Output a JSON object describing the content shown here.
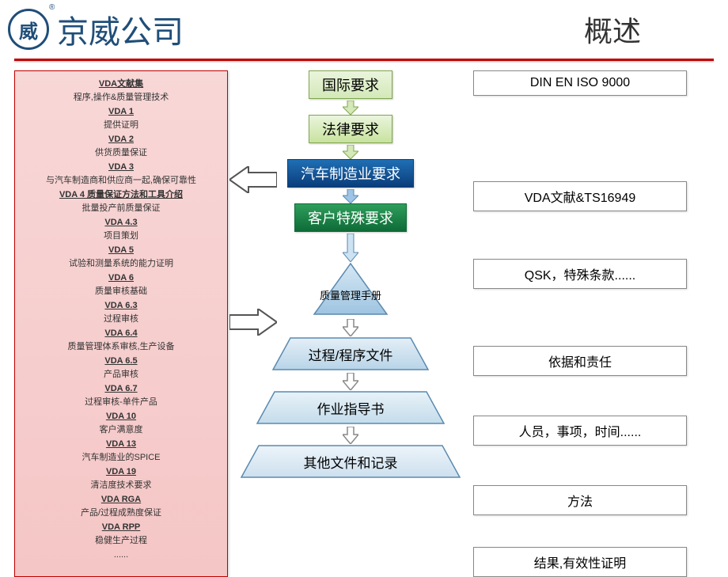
{
  "header": {
    "company": "京威公司",
    "title": "概述",
    "reg": "®",
    "logo_char": "威"
  },
  "colors": {
    "redline": "#c00000",
    "logo": "#1f4e79"
  },
  "left_items": [
    {
      "t": "VDA文献集",
      "d": "程序,操作&质量管理技术"
    },
    {
      "t": "VDA 1",
      "d": "提供证明"
    },
    {
      "t": "VDA 2",
      "d": "供货质量保证"
    },
    {
      "t": "VDA 3",
      "d": "与汽车制造商和供应商一起,确保可靠性"
    },
    {
      "t": "VDA 4 质量保证方法和工具介绍",
      "d": "批量投产前质量保证"
    },
    {
      "t": "VDA 4.3",
      "d": "项目策划"
    },
    {
      "t": "VDA 5",
      "d": "试验和测量系统的能力证明"
    },
    {
      "t": "VDA 6",
      "d": "质量审核基础"
    },
    {
      "t": "VDA 6.3",
      "d": "过程审核"
    },
    {
      "t": "VDA 6.4",
      "d": "质量管理体系审核,生产设备"
    },
    {
      "t": "VDA 6.5",
      "d": "产品审核"
    },
    {
      "t": "VDA 6.7",
      "d": "过程审核-单件产品"
    },
    {
      "t": "VDA 10",
      "d": "客户满意度"
    },
    {
      "t": "VDA 13",
      "d": "汽车制造业的SPICE"
    },
    {
      "t": "VDA 19",
      "d": "清洁度技术要求"
    },
    {
      "t": "VDA RGA",
      "d": "产品/过程成熟度保证"
    },
    {
      "t": "VDA RPP",
      "d": "稳健生产过程"
    },
    {
      "t": "",
      "d": "......"
    }
  ],
  "flow": {
    "box1": {
      "text": "国际要求",
      "bg": "linear-gradient(#eaf5dc,#d4e8b8)",
      "border": "#7fa650"
    },
    "box2": {
      "text": "法律要求",
      "bg": "linear-gradient(#eaf5dc,#c8e29e)",
      "border": "#7fa650"
    },
    "box3": {
      "text": "汽车制造业要求",
      "bg": "linear-gradient(#1f6fb5,#0b3d7a)",
      "border": "#0b3d7a",
      "color": "#fff"
    },
    "box4": {
      "text": "客户特殊要求",
      "bg": "linear-gradient(#2e9e5b,#0e6b37)",
      "border": "#0e6b37",
      "color": "#fff"
    },
    "pyr_top": "质量管理手册",
    "trap1": "过程/程序文件",
    "trap2": "作业指导书",
    "trap3": "其他文件和记录",
    "pyr_fill": "#b8d4e8",
    "pyr_stroke": "#5a8ab0"
  },
  "right_boxes": {
    "r1": "DIN EN ISO 9000",
    "r2": "VDA文献&TS16949",
    "r3": "QSK，特殊条款......",
    "r4": "依据和责任",
    "r5": "人员，事项，时间......",
    "r6": "方法",
    "r7": "结果,有效性证明"
  },
  "right_offsets": {
    "r1": 0,
    "r2": 108,
    "r3": 60,
    "r4": 72,
    "r5": 50,
    "r6": 50,
    "r7": 40
  }
}
